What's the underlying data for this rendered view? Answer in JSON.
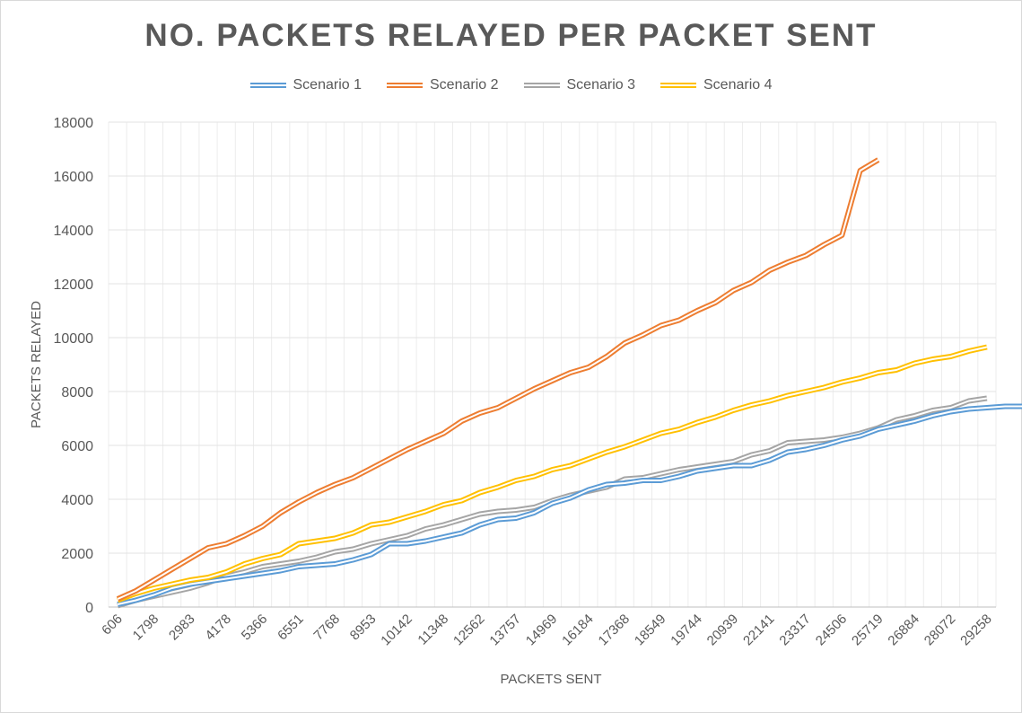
{
  "chart_data": {
    "type": "line",
    "title": "NO. PACKETS RELAYED PER PACKET SENT",
    "xlabel": "PACKETS SENT",
    "ylabel": "PACKETS RELAYED",
    "ylim": [
      0,
      18000
    ],
    "yticks": [
      0,
      2000,
      4000,
      6000,
      8000,
      10000,
      12000,
      14000,
      16000,
      18000
    ],
    "x_tick_labels": [
      "606",
      "1798",
      "2983",
      "4178",
      "5366",
      "6551",
      "7768",
      "8953",
      "10142",
      "11348",
      "12562",
      "13757",
      "14969",
      "16184",
      "17368",
      "18549",
      "19744",
      "20939",
      "22141",
      "23317",
      "24506",
      "25719",
      "26884",
      "28072",
      "29258"
    ],
    "grid": true,
    "legend_position": "top",
    "series": [
      {
        "name": "Scenario 1",
        "color": "#5b9bd5",
        "values": [
          100,
          250,
          450,
          700,
          850,
          950,
          1050,
          1150,
          1250,
          1350,
          1500,
          1550,
          1600,
          1750,
          1950,
          2350,
          2350,
          2450,
          2600,
          2750,
          3050,
          3250,
          3300,
          3500,
          3850,
          4050,
          4350,
          4550,
          4600,
          4700,
          4700,
          4850,
          5050,
          5150,
          5250,
          5250,
          5450,
          5750,
          5850,
          6000,
          6200,
          6350,
          6600,
          6750,
          6900,
          7100,
          7250,
          7350,
          7400,
          7450,
          7450,
          7500,
          7550
        ]
      },
      {
        "name": "Scenario 2",
        "color": "#ed7d31",
        "values": [
          300,
          600,
          1000,
          1400,
          1800,
          2200,
          2350,
          2650,
          3000,
          3500,
          3900,
          4250,
          4550,
          4800,
          5150,
          5500,
          5850,
          6150,
          6450,
          6900,
          7200,
          7400,
          7750,
          8100,
          8400,
          8700,
          8900,
          9300,
          9800,
          10100,
          10450,
          10650,
          11000,
          11300,
          11750,
          12050,
          12500,
          12800,
          13050,
          13450,
          13800,
          16200,
          16600
        ]
      },
      {
        "name": "Scenario 3",
        "color": "#a5a5a5",
        "values": [
          50,
          250,
          400,
          550,
          700,
          900,
          1150,
          1300,
          1500,
          1600,
          1700,
          1850,
          2050,
          2150,
          2350,
          2500,
          2650,
          2900,
          3050,
          3250,
          3450,
          3550,
          3600,
          3700,
          3950,
          4150,
          4300,
          4450,
          4750,
          4800,
          4950,
          5100,
          5200,
          5300,
          5400,
          5650,
          5800,
          6100,
          6150,
          6200,
          6300,
          6450,
          6650,
          6950,
          7100,
          7300,
          7400,
          7650,
          7750
        ]
      },
      {
        "name": "Scenario 4",
        "color": "#ffc000",
        "values": [
          250,
          500,
          700,
          850,
          1000,
          1100,
          1300,
          1600,
          1800,
          1950,
          2350,
          2450,
          2550,
          2750,
          3050,
          3150,
          3350,
          3550,
          3800,
          3950,
          4250,
          4450,
          4700,
          4850,
          5100,
          5250,
          5500,
          5750,
          5950,
          6200,
          6450,
          6600,
          6850,
          7050,
          7300,
          7500,
          7650,
          7850,
          8000,
          8150,
          8350,
          8500,
          8700,
          8800,
          9050,
          9200,
          9300,
          9500,
          9650
        ]
      }
    ]
  }
}
